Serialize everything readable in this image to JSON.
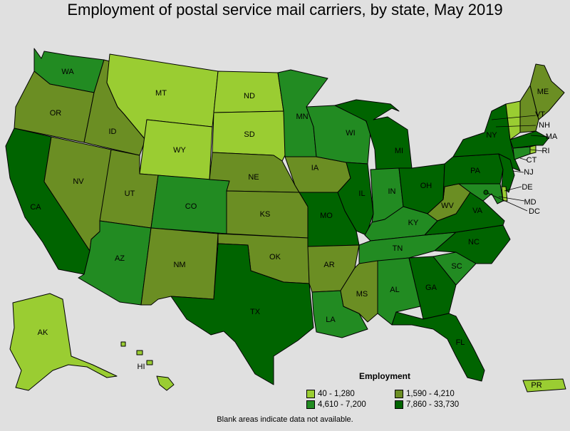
{
  "title": "Employment of postal service mail carriers, by state, May 2019",
  "footnote": "Blank areas indicate data not available.",
  "colors": {
    "c1": "#9acd32",
    "c2": "#6b8e23",
    "c3": "#228b22",
    "c4": "#006400",
    "border": "#000000",
    "background": "#e0e0e0"
  },
  "legend": {
    "title": "Employment",
    "items": [
      {
        "label": "40 - 1,280",
        "color": "#9acd32"
      },
      {
        "label": "1,590 - 4,210",
        "color": "#6b8e23"
      },
      {
        "label": "4,610 - 7,200",
        "color": "#228b22"
      },
      {
        "label": "7,860 - 33,730",
        "color": "#006400"
      }
    ]
  },
  "states": [
    {
      "abbr": "WA",
      "class": 3
    },
    {
      "abbr": "OR",
      "class": 2
    },
    {
      "abbr": "CA",
      "class": 4
    },
    {
      "abbr": "ID",
      "class": 2
    },
    {
      "abbr": "NV",
      "class": 2
    },
    {
      "abbr": "MT",
      "class": 1
    },
    {
      "abbr": "WY",
      "class": 1
    },
    {
      "abbr": "UT",
      "class": 2
    },
    {
      "abbr": "AZ",
      "class": 3
    },
    {
      "abbr": "CO",
      "class": 3
    },
    {
      "abbr": "NM",
      "class": 2
    },
    {
      "abbr": "ND",
      "class": 1
    },
    {
      "abbr": "SD",
      "class": 1
    },
    {
      "abbr": "NE",
      "class": 2
    },
    {
      "abbr": "KS",
      "class": 2
    },
    {
      "abbr": "OK",
      "class": 2
    },
    {
      "abbr": "TX",
      "class": 4
    },
    {
      "abbr": "MN",
      "class": 3
    },
    {
      "abbr": "IA",
      "class": 2
    },
    {
      "abbr": "MO",
      "class": 4
    },
    {
      "abbr": "AR",
      "class": 2
    },
    {
      "abbr": "LA",
      "class": 3
    },
    {
      "abbr": "WI",
      "class": 3
    },
    {
      "abbr": "IL",
      "class": 4
    },
    {
      "abbr": "MI",
      "class": 4
    },
    {
      "abbr": "IN",
      "class": 3
    },
    {
      "abbr": "OH",
      "class": 4
    },
    {
      "abbr": "KY",
      "class": 3
    },
    {
      "abbr": "TN",
      "class": 3
    },
    {
      "abbr": "MS",
      "class": 2
    },
    {
      "abbr": "AL",
      "class": 3
    },
    {
      "abbr": "GA",
      "class": 4
    },
    {
      "abbr": "FL",
      "class": 4
    },
    {
      "abbr": "SC",
      "class": 3
    },
    {
      "abbr": "NC",
      "class": 4
    },
    {
      "abbr": "VA",
      "class": 4
    },
    {
      "abbr": "WV",
      "class": 2
    },
    {
      "abbr": "PA",
      "class": 4
    },
    {
      "abbr": "NY",
      "class": 4
    },
    {
      "abbr": "ME",
      "class": 2
    },
    {
      "abbr": "VT",
      "class": 1
    },
    {
      "abbr": "NH",
      "class": 2
    },
    {
      "abbr": "MA",
      "class": 4
    },
    {
      "abbr": "RI",
      "class": 1
    },
    {
      "abbr": "CT",
      "class": 3
    },
    {
      "abbr": "NJ",
      "class": 4
    },
    {
      "abbr": "DE",
      "class": 1
    },
    {
      "abbr": "MD",
      "class": 3
    },
    {
      "abbr": "DC",
      "class": 4
    },
    {
      "abbr": "AK",
      "class": 1
    },
    {
      "abbr": "HI",
      "class": 1
    },
    {
      "abbr": "PR",
      "class": 1
    }
  ]
}
